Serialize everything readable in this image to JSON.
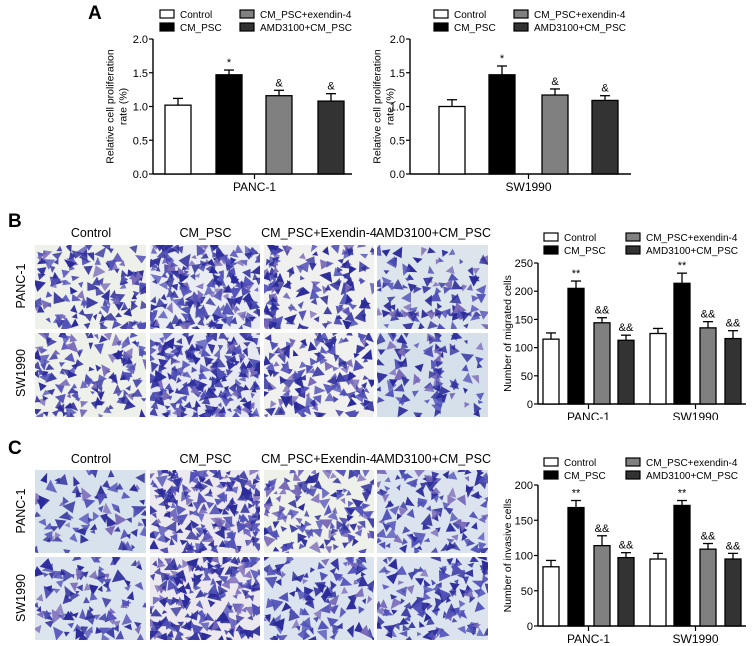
{
  "panels": {
    "A": {
      "letter": "A"
    },
    "B": {
      "letter": "B",
      "col_headers": [
        "Control",
        "CM_PSC",
        "CM_PSC+Exendin-4",
        "AMD3100+CM_PSC"
      ],
      "row_headers": [
        "PANC-1",
        "SW1990"
      ]
    },
    "C": {
      "letter": "C",
      "col_headers": [
        "Control",
        "CM_PSC",
        "CM_PSC+Exendin-4",
        "AMD3100+CM_PSC"
      ],
      "row_headers": [
        "PANC-1",
        "SW1990"
      ]
    }
  },
  "legend": {
    "items": [
      {
        "label": "Control",
        "color": "#ffffff"
      },
      {
        "label": "CM_PSC",
        "color": "#000000"
      },
      {
        "label": "CM_PSC+exendin-4",
        "color": "#808080"
      },
      {
        "label": "AMD3100+CM_PSC",
        "color": "#333333"
      }
    ]
  },
  "colors": {
    "stain_dark": "#2a2a9a",
    "stain_mid": "#5050b8",
    "background_light": "#e8ecef",
    "background_blue": "#c9d6e4"
  },
  "chart_data": [
    {
      "id": "A-PANC-1",
      "type": "bar",
      "title": "",
      "xlabel": "PANC-1",
      "ylabel": "Relative cell proliferation rate (%)",
      "ylim": [
        0,
        2.0
      ],
      "yticks": [
        "0.0",
        "0.5",
        "1.0",
        "1.5",
        "2.0"
      ],
      "categories": [
        "PANC-1"
      ],
      "series": [
        {
          "name": "Control",
          "values": [
            1.02
          ],
          "errors": [
            0.1
          ],
          "annotation": ""
        },
        {
          "name": "CM_PSC",
          "values": [
            1.47
          ],
          "errors": [
            0.07
          ],
          "annotation": "*"
        },
        {
          "name": "CM_PSC+exendin-4",
          "values": [
            1.16
          ],
          "errors": [
            0.08
          ],
          "annotation": "&"
        },
        {
          "name": "AMD3100+CM_PSC",
          "values": [
            1.08
          ],
          "errors": [
            0.11
          ],
          "annotation": "&"
        }
      ],
      "grid": false,
      "legend_position": "top"
    },
    {
      "id": "A-SW1990",
      "type": "bar",
      "title": "",
      "xlabel": "SW1990",
      "ylabel": "Relative cell proliferation rate (%)",
      "ylim": [
        0,
        2.0
      ],
      "yticks": [
        "0.0",
        "0.5",
        "1.0",
        "1.5",
        "2.0"
      ],
      "categories": [
        "SW1990"
      ],
      "series": [
        {
          "name": "Control",
          "values": [
            1.0
          ],
          "errors": [
            0.1
          ],
          "annotation": ""
        },
        {
          "name": "CM_PSC",
          "values": [
            1.47
          ],
          "errors": [
            0.13
          ],
          "annotation": "*"
        },
        {
          "name": "CM_PSC+exendin-4",
          "values": [
            1.17
          ],
          "errors": [
            0.09
          ],
          "annotation": "&"
        },
        {
          "name": "AMD3100+CM_PSC",
          "values": [
            1.09
          ],
          "errors": [
            0.07
          ],
          "annotation": "&"
        }
      ],
      "grid": false,
      "legend_position": "top"
    },
    {
      "id": "B-migration",
      "type": "bar",
      "title": "",
      "xlabel": "",
      "ylabel": "Number of migrated cells",
      "ylim": [
        0,
        250
      ],
      "yticks": [
        "0",
        "50",
        "100",
        "150",
        "200",
        "250"
      ],
      "categories": [
        "PANC-1",
        "SW1990"
      ],
      "series": [
        {
          "name": "Control",
          "values": [
            115,
            125
          ],
          "errors": [
            11,
            9
          ],
          "annotations": [
            "",
            ""
          ]
        },
        {
          "name": "CM_PSC",
          "values": [
            205,
            214
          ],
          "errors": [
            13,
            18
          ],
          "annotations": [
            "**",
            "**"
          ]
        },
        {
          "name": "CM_PSC+exendin-4",
          "values": [
            144,
            135
          ],
          "errors": [
            9,
            11
          ],
          "annotations": [
            "&&",
            "&&"
          ]
        },
        {
          "name": "AMD3100+CM_PSC",
          "values": [
            113,
            116
          ],
          "errors": [
            9,
            14
          ],
          "annotations": [
            "&&",
            "&&"
          ]
        }
      ],
      "grid": false,
      "legend_position": "top"
    },
    {
      "id": "C-invasion",
      "type": "bar",
      "title": "",
      "xlabel": "",
      "ylabel": "Number of invasive cells",
      "ylim": [
        0,
        200
      ],
      "yticks": [
        "0",
        "50",
        "100",
        "150",
        "200"
      ],
      "categories": [
        "PANC-1",
        "SW1990"
      ],
      "series": [
        {
          "name": "Control",
          "values": [
            84,
            95
          ],
          "errors": [
            9,
            8
          ],
          "annotations": [
            "",
            ""
          ]
        },
        {
          "name": "CM_PSC",
          "values": [
            168,
            171
          ],
          "errors": [
            10,
            7
          ],
          "annotations": [
            "**",
            "**"
          ]
        },
        {
          "name": "CM_PSC+exendin-4",
          "values": [
            114,
            109
          ],
          "errors": [
            14,
            8
          ],
          "annotations": [
            "&&",
            "&&"
          ]
        },
        {
          "name": "AMD3100+CM_PSC",
          "values": [
            97,
            95
          ],
          "errors": [
            7,
            8
          ],
          "annotations": [
            "&&",
            "&&"
          ]
        }
      ],
      "grid": false,
      "legend_position": "top"
    }
  ]
}
